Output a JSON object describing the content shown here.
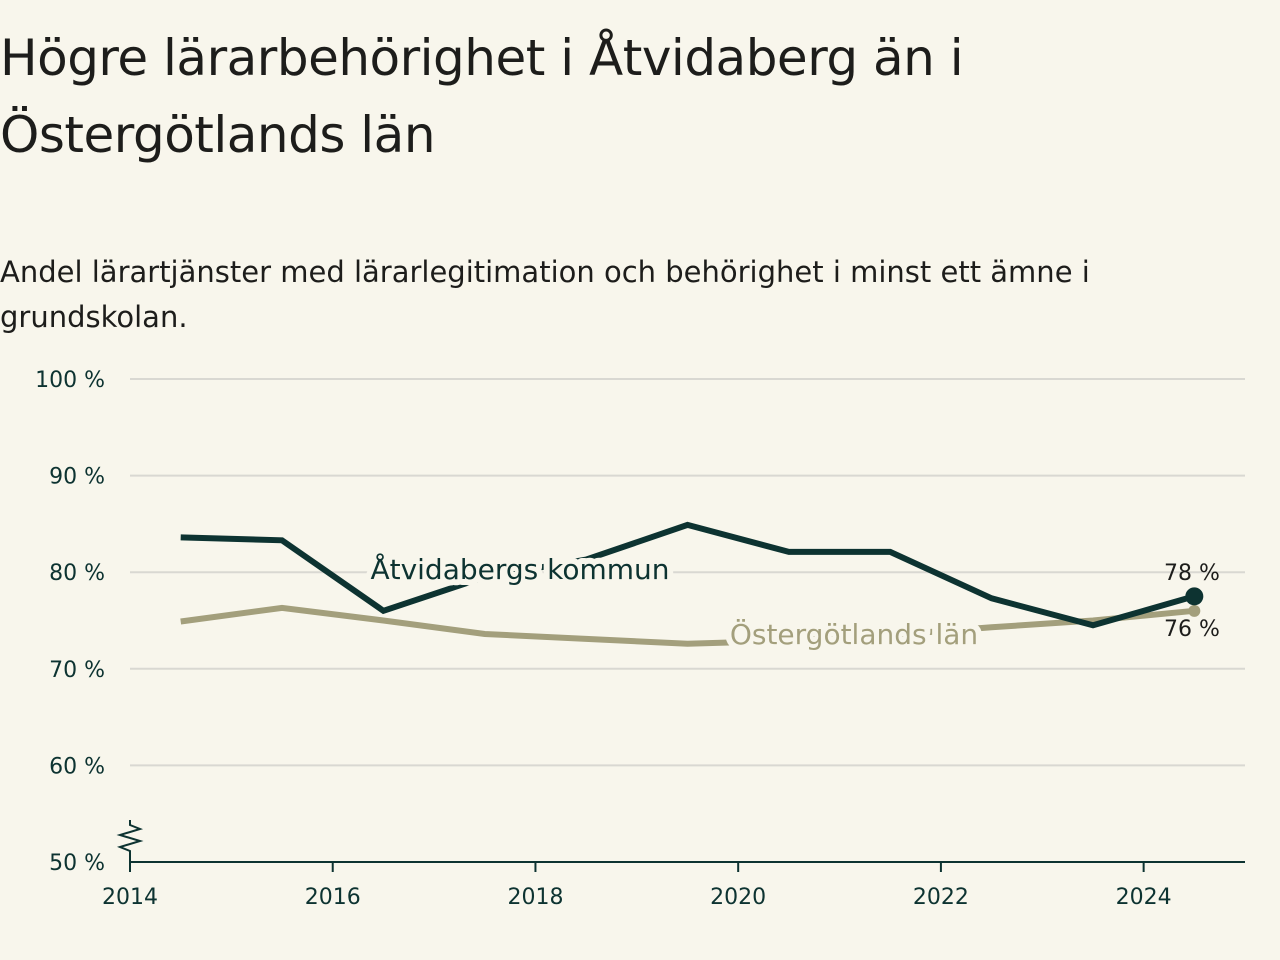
{
  "title": "Högre lärarbehörighet i Åtvidaberg än i Östergötlands län",
  "subtitle": "Andel lärartjänster med lärarlegitimation och behörighet i minst ett ämne i grundskolan.",
  "colors": {
    "background": "#f8f6ec",
    "atvidaberg": "#0d3331",
    "ostergotland": "#a39f7c",
    "grid": "#d9d8d2",
    "axis": "#0d3331"
  },
  "chart_data": {
    "type": "line",
    "title": "Högre lärarbehörighet i Åtvidaberg än i Östergötlands län",
    "subtitle": "Andel lärartjänster med lärarlegitimation och behörighet i minst ett ämne i grundskolan.",
    "x": [
      2014.5,
      2015.5,
      2016.5,
      2017.5,
      2018.5,
      2019.5,
      2020.5,
      2021.5,
      2022.5,
      2023.5,
      2024.5
    ],
    "xlim": [
      2014,
      2025
    ],
    "x_ticks": [
      2014,
      2016,
      2018,
      2020,
      2022,
      2024
    ],
    "ylim": [
      50,
      100
    ],
    "y_ticks": [
      50,
      60,
      70,
      80,
      90,
      100
    ],
    "y_tick_labels": [
      "50 %",
      "60 %",
      "70 %",
      "80 %",
      "90 %",
      "100 %"
    ],
    "y_axis_break": true,
    "grid": true,
    "series": [
      {
        "name": "Åtvidabergs kommun",
        "color": "#0d3331",
        "values": [
          83.6,
          83.3,
          76.0,
          79.5,
          81.3,
          84.9,
          82.1,
          82.1,
          77.3,
          74.5,
          77.5
        ],
        "end_label": "78 %"
      },
      {
        "name": "Östergötlands län",
        "color": "#a39f7c",
        "values": [
          74.9,
          76.3,
          75.0,
          73.6,
          73.1,
          72.6,
          72.9,
          73.5,
          74.3,
          75.0,
          76.0
        ],
        "end_label": "76 %"
      }
    ]
  }
}
